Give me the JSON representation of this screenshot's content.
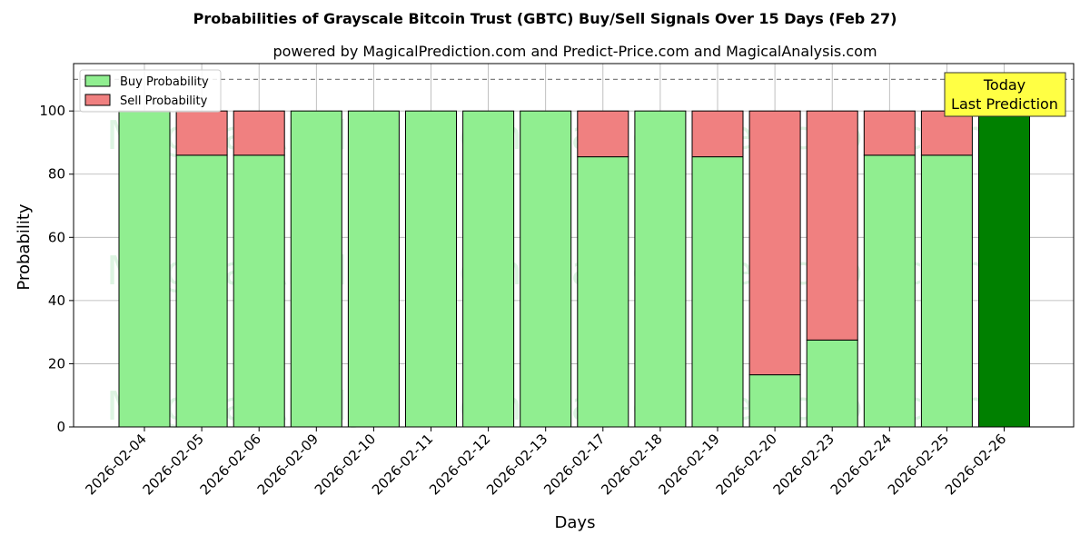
{
  "chart_data": {
    "type": "bar",
    "stacked": true,
    "title": "Probabilities of Grayscale Bitcoin Trust (GBTC) Buy/Sell Signals Over 15 Days (Feb 27)",
    "subtitle": "powered by MagicalPrediction.com and Predict-Price.com and MagicalAnalysis.com",
    "xlabel": "Days",
    "ylabel": "Probability",
    "ylim": [
      0,
      115
    ],
    "yticks": [
      0,
      20,
      40,
      60,
      80,
      100
    ],
    "reference_line": 110,
    "grid": true,
    "legend_position": "top-left",
    "categories": [
      "2026-02-04",
      "2026-02-05",
      "2026-02-06",
      "2026-02-09",
      "2026-02-10",
      "2026-02-11",
      "2026-02-12",
      "2026-02-13",
      "2026-02-17",
      "2026-02-18",
      "2026-02-19",
      "2026-02-20",
      "2026-02-23",
      "2026-02-24",
      "2026-02-25",
      "2026-02-26"
    ],
    "series": [
      {
        "name": "Buy Probability",
        "color": "#90ee90",
        "values": [
          100,
          86,
          86,
          100,
          100,
          100,
          100,
          100,
          85.5,
          100,
          85.5,
          16.5,
          27.5,
          86,
          86,
          100
        ]
      },
      {
        "name": "Sell Probability",
        "color": "#f08080",
        "values": [
          0,
          14,
          14,
          0,
          0,
          0,
          0,
          0,
          14.5,
          0,
          14.5,
          83.5,
          72.5,
          14,
          14,
          0
        ]
      }
    ],
    "highlight": {
      "index": 15,
      "color": "#008000"
    },
    "annotation": {
      "lines": [
        "Today",
        "Last Prediction"
      ],
      "color": "#ffff44"
    },
    "watermarks": [
      "MagicalAnalysis.com",
      "MagicalPrediction.com"
    ]
  }
}
